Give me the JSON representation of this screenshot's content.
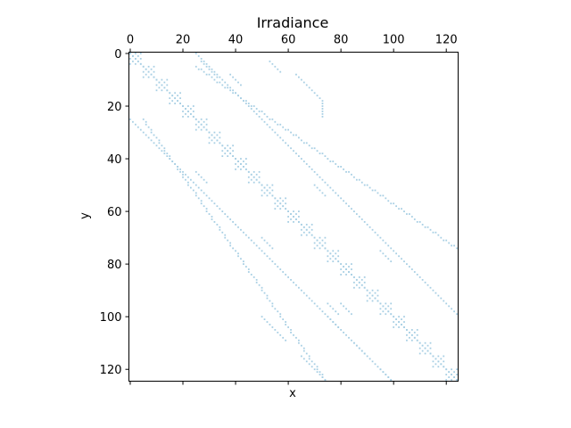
{
  "chart_data": {
    "type": "scatter",
    "title": "Irradiance",
    "xlabel": "x",
    "ylabel": "y",
    "xlim": [
      0,
      124
    ],
    "ylim": [
      124,
      0
    ],
    "x_ticks": [
      0,
      20,
      40,
      60,
      80,
      100,
      120
    ],
    "y_ticks": [
      0,
      20,
      40,
      60,
      80,
      100,
      120
    ],
    "x_tick_labels": [
      "0",
      "20",
      "40",
      "60",
      "80",
      "100",
      "120"
    ],
    "y_tick_labels": [
      "0",
      "20",
      "40",
      "60",
      "80",
      "100",
      "120"
    ],
    "x_axis_position": "top",
    "grid": false,
    "marker_color": "#a6cee3",
    "description": "sparsity pattern of a 125x125 matrix",
    "segments": [
      {
        "from": [
          0,
          0
        ],
        "to": [
          124,
          124
        ],
        "kind": "diagonal"
      },
      {
        "from": [
          0,
          25
        ],
        "to": [
          99,
          124
        ],
        "kind": "lower-band"
      },
      {
        "from": [
          5,
          25
        ],
        "to": [
          74,
          124
        ],
        "kind": "lower-band"
      },
      {
        "from": [
          25,
          0
        ],
        "to": [
          124,
          99
        ],
        "kind": "upper-band"
      },
      {
        "from": [
          25,
          5
        ],
        "to": [
          124,
          74
        ],
        "kind": "upper-band"
      },
      {
        "from": [
          27,
          3
        ],
        "to": [
          33,
          9
        ],
        "kind": "fragment"
      },
      {
        "from": [
          38,
          8
        ],
        "to": [
          42,
          12
        ],
        "kind": "fragment"
      },
      {
        "from": [
          53,
          3
        ],
        "to": [
          57,
          7
        ],
        "kind": "fragment"
      },
      {
        "from": [
          63,
          8
        ],
        "to": [
          67,
          12
        ],
        "kind": "fragment"
      },
      {
        "from": [
          68,
          13
        ],
        "to": [
          72,
          17
        ],
        "kind": "fragment"
      },
      {
        "from": [
          73,
          18
        ],
        "to": [
          73,
          24
        ],
        "kind": "fragment"
      },
      {
        "from": [
          25,
          45
        ],
        "to": [
          29,
          49
        ],
        "kind": "fragment"
      },
      {
        "from": [
          50,
          70
        ],
        "to": [
          54,
          74
        ],
        "kind": "fragment"
      },
      {
        "from": [
          70,
          50
        ],
        "to": [
          74,
          54
        ],
        "kind": "fragment"
      },
      {
        "from": [
          95,
          75
        ],
        "to": [
          99,
          79
        ],
        "kind": "fragment"
      },
      {
        "from": [
          75,
          95
        ],
        "to": [
          79,
          99
        ],
        "kind": "fragment"
      },
      {
        "from": [
          50,
          100
        ],
        "to": [
          54,
          104
        ],
        "kind": "fragment"
      },
      {
        "from": [
          55,
          105
        ],
        "to": [
          59,
          109
        ],
        "kind": "fragment"
      },
      {
        "from": [
          65,
          115
        ],
        "to": [
          69,
          119
        ],
        "kind": "fragment"
      },
      {
        "from": [
          70,
          120
        ],
        "to": [
          74,
          124
        ],
        "kind": "fragment"
      },
      {
        "from": [
          75,
          100
        ],
        "to": [
          79,
          104
        ],
        "kind": "fragment"
      },
      {
        "from": [
          85,
          110
        ],
        "to": [
          89,
          114
        ],
        "kind": "fragment"
      },
      {
        "from": [
          95,
          120
        ],
        "to": [
          99,
          124
        ],
        "kind": "fragment"
      },
      {
        "from": [
          80,
          95
        ],
        "to": [
          84,
          99
        ],
        "kind": "fragment"
      }
    ],
    "blocks": [
      {
        "start": 0,
        "size": 5
      },
      {
        "start": 5,
        "size": 5
      },
      {
        "start": 10,
        "size": 5
      },
      {
        "start": 15,
        "size": 5
      },
      {
        "start": 20,
        "size": 5
      },
      {
        "start": 25,
        "size": 5
      },
      {
        "start": 30,
        "size": 5
      },
      {
        "start": 35,
        "size": 5
      },
      {
        "start": 40,
        "size": 5
      },
      {
        "start": 45,
        "size": 5
      },
      {
        "start": 50,
        "size": 5
      },
      {
        "start": 55,
        "size": 5
      },
      {
        "start": 60,
        "size": 5
      },
      {
        "start": 65,
        "size": 5
      },
      {
        "start": 70,
        "size": 5
      },
      {
        "start": 75,
        "size": 5
      },
      {
        "start": 80,
        "size": 5
      },
      {
        "start": 85,
        "size": 5
      },
      {
        "start": 90,
        "size": 5
      },
      {
        "start": 95,
        "size": 5
      },
      {
        "start": 100,
        "size": 5
      },
      {
        "start": 105,
        "size": 5
      },
      {
        "start": 110,
        "size": 5
      },
      {
        "start": 115,
        "size": 5
      },
      {
        "start": 120,
        "size": 5
      }
    ]
  }
}
